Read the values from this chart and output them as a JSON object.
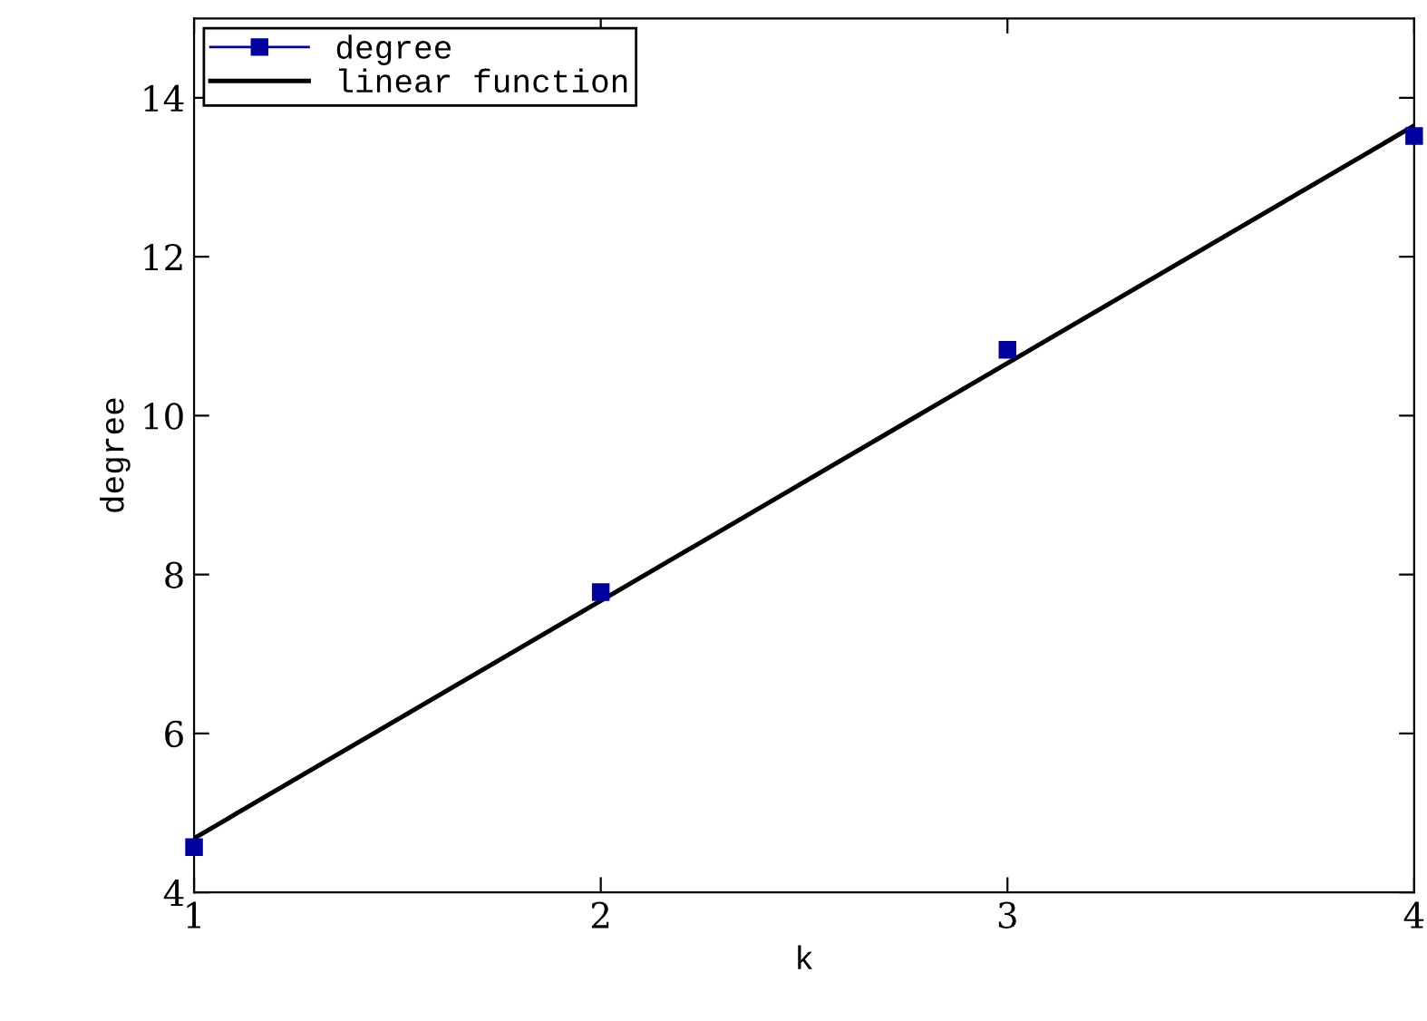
{
  "chart_data": {
    "type": "scatter",
    "xlabel": "k",
    "ylabel": "degree",
    "series": [
      {
        "name": "degree",
        "color": "#0000a0",
        "marker": "square",
        "x": [
          1,
          2,
          3,
          4
        ],
        "values": [
          4.57,
          7.78,
          10.83,
          13.52
        ]
      },
      {
        "name": "linear function",
        "type": "line",
        "color": "#000000",
        "x": [
          1,
          4
        ],
        "values": [
          4.68,
          13.65
        ]
      }
    ],
    "xlim": [
      1,
      4
    ],
    "ylim": [
      4,
      15
    ],
    "xticks": [
      1,
      2,
      3,
      4
    ],
    "yticks": [
      4,
      6,
      8,
      10,
      12,
      14
    ],
    "grid": false,
    "legend": "top left"
  }
}
